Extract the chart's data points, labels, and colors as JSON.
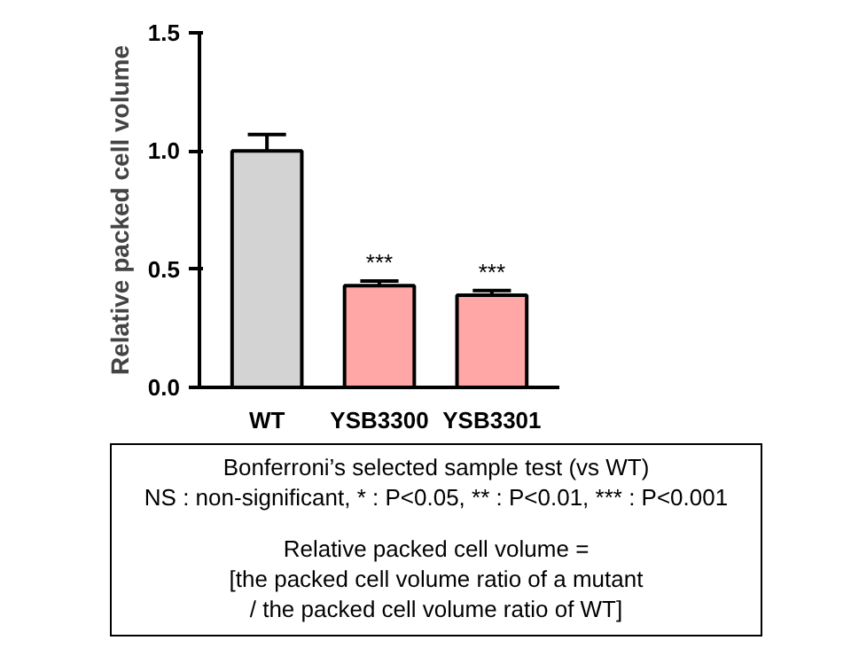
{
  "chart_data": {
    "type": "bar",
    "ylabel": "Relative packed cell volume",
    "categories": [
      "WT",
      "YSB3300",
      "YSB3301"
    ],
    "values": [
      1.0,
      0.43,
      0.39
    ],
    "errors": [
      0.07,
      0.02,
      0.02
    ],
    "colors": [
      "#d3d3d3",
      "#ffa6a6",
      "#ffa6a6"
    ],
    "ylim": [
      0,
      1.5
    ],
    "yticks": [
      {
        "value": 0,
        "label": "0.0"
      },
      {
        "value": 0.5,
        "label": "0.5"
      },
      {
        "value": 1.0,
        "label": "1.0"
      },
      {
        "value": 1.5,
        "label": "1.5"
      }
    ],
    "grid": false,
    "annotations": [
      {
        "text": "***",
        "x": "YSB3300",
        "y": 0.45
      },
      {
        "text": "***",
        "x": "YSB3301",
        "y": 0.41
      },
      "Bonferroni’s selected sample test (vs WT)",
      "NS : non-significant, * : P<0.05, ** : P<0.01, *** : P<0.001",
      "Relative packed cell volume =",
      "[the packed cell volume ratio of a mutant",
      "/ the packed cell volume ratio of WT]"
    ]
  }
}
